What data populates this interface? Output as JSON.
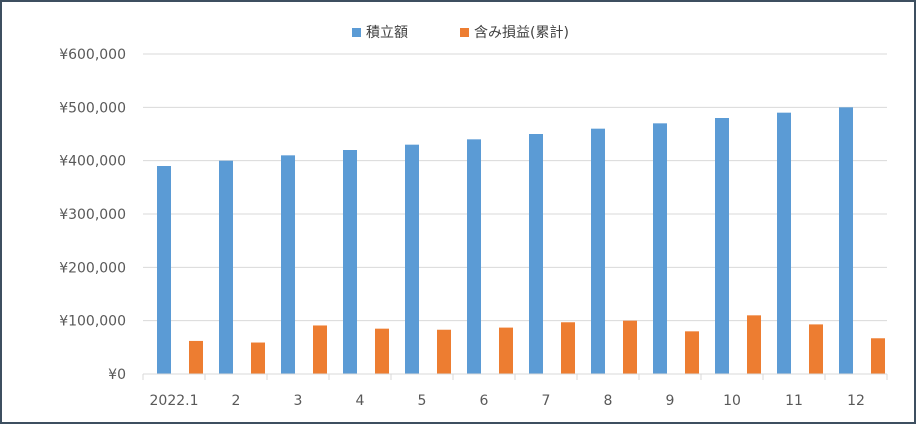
{
  "chart_data": {
    "type": "bar",
    "categories": [
      "2022.1",
      "2",
      "3",
      "4",
      "5",
      "6",
      "7",
      "8",
      "9",
      "10",
      "11",
      "12"
    ],
    "series": [
      {
        "name": "積立額",
        "color": "#5b9bd5",
        "values": [
          390000,
          400000,
          410000,
          420000,
          430000,
          440000,
          450000,
          460000,
          470000,
          480000,
          490000,
          500000
        ]
      },
      {
        "name": "含み損益(累計)",
        "color": "#ed7d31",
        "values": [
          62000,
          59000,
          91000,
          85000,
          83000,
          87000,
          97000,
          100000,
          80000,
          110000,
          93000,
          67000
        ]
      }
    ],
    "ylim": [
      0,
      600000
    ],
    "yticks": [
      0,
      100000,
      200000,
      300000,
      400000,
      500000,
      600000
    ],
    "ytick_labels": [
      "¥0",
      "¥100,000",
      "¥200,000",
      "¥300,000",
      "¥400,000",
      "¥500,000",
      "¥600,000"
    ],
    "legend_position": "top",
    "grid": true
  }
}
